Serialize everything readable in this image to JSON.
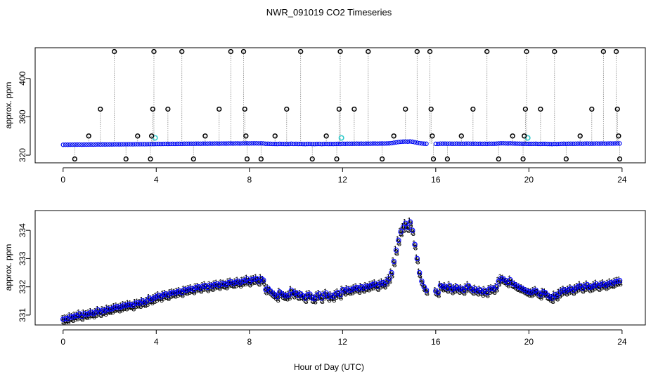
{
  "page_title": "NWR_091019  CO2 Timeseries",
  "xlabel": "Hour of Day (UTC)",
  "colors": {
    "level1": "#cc0000",
    "level2": "#00a000",
    "level3": "#0000ff",
    "outlier": "#000000",
    "flag": "#33cccc",
    "guide": "#888888"
  },
  "chart_data": [
    {
      "type": "scatter",
      "title": "NWR_091019  CO2 Timeseries",
      "xlabel": "",
      "ylabel": "approx. ppm",
      "xlim": [
        -1.2,
        25
      ],
      "ylim": [
        312,
        432
      ],
      "xticks": [
        0,
        4,
        8,
        12,
        16,
        20,
        24
      ],
      "xtick_labels": [
        "0",
        "4",
        "8",
        "12",
        "16",
        "20",
        "24"
      ],
      "yticks": [
        320,
        360,
        400
      ],
      "ytick_labels": [
        "320",
        "360",
        "400"
      ],
      "markers": "open circles, spikes joined to baseline by gray dotted lines",
      "outliers": [
        {
          "x": 0.5,
          "y": 316
        },
        {
          "x": 1.1,
          "y": 340
        },
        {
          "x": 1.6,
          "y": 368
        },
        {
          "x": 2.2,
          "y": 428
        },
        {
          "x": 2.7,
          "y": 316
        },
        {
          "x": 3.2,
          "y": 340
        },
        {
          "x": 3.75,
          "y": 316
        },
        {
          "x": 3.8,
          "y": 340
        },
        {
          "x": 3.85,
          "y": 368
        },
        {
          "x": 3.9,
          "y": 428
        },
        {
          "x": 4.5,
          "y": 368
        },
        {
          "x": 5.1,
          "y": 428
        },
        {
          "x": 5.6,
          "y": 316
        },
        {
          "x": 6.1,
          "y": 340
        },
        {
          "x": 6.7,
          "y": 368
        },
        {
          "x": 7.2,
          "y": 428
        },
        {
          "x": 7.75,
          "y": 428
        },
        {
          "x": 7.8,
          "y": 368
        },
        {
          "x": 7.85,
          "y": 340
        },
        {
          "x": 7.9,
          "y": 316
        },
        {
          "x": 8.5,
          "y": 316
        },
        {
          "x": 9.1,
          "y": 340
        },
        {
          "x": 9.6,
          "y": 368
        },
        {
          "x": 10.2,
          "y": 428
        },
        {
          "x": 10.7,
          "y": 316
        },
        {
          "x": 11.3,
          "y": 340
        },
        {
          "x": 11.75,
          "y": 316
        },
        {
          "x": 11.85,
          "y": 368
        },
        {
          "x": 11.9,
          "y": 428
        },
        {
          "x": 12.5,
          "y": 368
        },
        {
          "x": 13.1,
          "y": 428
        },
        {
          "x": 13.7,
          "y": 316
        },
        {
          "x": 14.2,
          "y": 340
        },
        {
          "x": 14.7,
          "y": 368
        },
        {
          "x": 15.2,
          "y": 428
        },
        {
          "x": 15.75,
          "y": 428
        },
        {
          "x": 15.8,
          "y": 368
        },
        {
          "x": 15.85,
          "y": 340
        },
        {
          "x": 15.9,
          "y": 316
        },
        {
          "x": 16.5,
          "y": 316
        },
        {
          "x": 17.1,
          "y": 340
        },
        {
          "x": 17.6,
          "y": 368
        },
        {
          "x": 18.2,
          "y": 428
        },
        {
          "x": 18.7,
          "y": 316
        },
        {
          "x": 19.3,
          "y": 340
        },
        {
          "x": 19.75,
          "y": 316
        },
        {
          "x": 19.8,
          "y": 340
        },
        {
          "x": 19.85,
          "y": 368
        },
        {
          "x": 19.9,
          "y": 428
        },
        {
          "x": 20.5,
          "y": 368
        },
        {
          "x": 21.1,
          "y": 428
        },
        {
          "x": 21.6,
          "y": 316
        },
        {
          "x": 22.2,
          "y": 340
        },
        {
          "x": 22.7,
          "y": 368
        },
        {
          "x": 23.2,
          "y": 428
        },
        {
          "x": 23.75,
          "y": 428
        },
        {
          "x": 23.8,
          "y": 368
        },
        {
          "x": 23.85,
          "y": 340
        },
        {
          "x": 23.9,
          "y": 316
        }
      ],
      "flagged": [
        {
          "x": 3.95,
          "y": 338
        },
        {
          "x": 11.95,
          "y": 338
        },
        {
          "x": 19.95,
          "y": 338
        }
      ]
    },
    {
      "type": "scatter",
      "title": "",
      "xlabel": "Hour of Day (UTC)",
      "ylabel": "approx. ppm",
      "xlim": [
        -1.2,
        25
      ],
      "ylim": [
        330.65,
        334.7
      ],
      "xticks": [
        0,
        4,
        8,
        12,
        16,
        20,
        24
      ],
      "xtick_labels": [
        "0",
        "4",
        "8",
        "12",
        "16",
        "20",
        "24"
      ],
      "yticks": [
        331,
        332,
        333,
        334
      ],
      "ytick_labels": [
        "331",
        "332",
        "333",
        "334"
      ],
      "markers": "level 1 = red '1', level 2 = green '2', level 3 = blue '3', mean = blue circle",
      "x_start": 0,
      "x_step": 0.1,
      "gap_after_index": 156,
      "gap_resume_x": 16,
      "values": [
        330.85,
        330.88,
        330.87,
        330.95,
        330.92,
        330.97,
        330.98,
        331.05,
        330.96,
        331.05,
        331.02,
        331.05,
        331.1,
        331.05,
        331.1,
        331.18,
        331.1,
        331.17,
        331.15,
        331.22,
        331.2,
        331.22,
        331.27,
        331.3,
        331.26,
        331.3,
        331.35,
        331.33,
        331.38,
        331.37,
        331.34,
        331.42,
        331.43,
        331.42,
        331.5,
        331.45,
        331.5,
        331.6,
        331.55,
        331.6,
        331.65,
        331.7,
        331.65,
        331.72,
        331.75,
        331.7,
        331.77,
        331.8,
        331.78,
        331.82,
        331.85,
        331.8,
        331.9,
        331.88,
        331.92,
        331.94,
        331.9,
        331.98,
        332.0,
        331.95,
        332.02,
        332.05,
        331.98,
        332.06,
        332.02,
        332.08,
        332.1,
        332.05,
        332.12,
        332.1,
        332.08,
        332.15,
        332.18,
        332.12,
        332.16,
        332.2,
        332.14,
        332.2,
        332.22,
        332.28,
        332.18,
        332.25,
        332.27,
        332.3,
        332.2,
        332.3,
        332.24,
        331.9,
        331.95,
        331.85,
        331.78,
        331.72,
        331.65,
        331.82,
        331.75,
        331.7,
        331.68,
        331.72,
        331.88,
        331.76,
        331.8,
        331.7,
        331.75,
        331.68,
        331.6,
        331.72,
        331.74,
        331.6,
        331.58,
        331.7,
        331.75,
        331.6,
        331.72,
        331.78,
        331.65,
        331.7,
        331.65,
        331.75,
        331.8,
        331.72,
        331.9,
        331.85,
        331.92,
        331.88,
        331.9,
        331.95,
        331.98,
        331.92,
        332.0,
        331.95,
        332.02,
        332.0,
        332.05,
        332.08,
        332.12,
        332.02,
        332.1,
        332.15,
        332.1,
        332.2,
        332.3,
        332.5,
        332.9,
        333.3,
        333.65,
        333.95,
        334.1,
        334.25,
        334.1,
        334.3,
        334.0,
        333.5,
        333.0,
        332.5,
        332.2,
        332.0,
        331.88,
        331.85,
        331.8,
        332.05,
        332.0,
        332.02,
        331.95,
        332.05,
        331.9,
        331.95,
        332.0,
        331.92,
        331.95,
        331.88,
        331.98,
        332.05,
        331.95,
        331.88,
        331.93,
        331.85,
        331.9,
        331.82,
        331.88,
        331.8,
        331.92,
        331.95,
        331.92,
        332.0,
        332.2,
        332.3,
        332.28,
        332.22,
        332.15,
        332.25,
        332.12,
        332.08,
        332.02,
        331.98,
        331.95,
        331.9,
        331.85,
        331.82,
        331.8,
        331.85,
        331.88,
        331.78,
        331.72,
        331.82,
        331.8,
        331.7,
        331.65,
        331.6,
        331.72,
        331.68,
        331.78,
        331.85,
        331.9,
        331.85,
        331.9,
        331.95,
        331.88,
        331.95,
        332.0,
        332.05,
        331.95,
        332.02,
        332.08,
        331.98,
        332.0,
        332.05,
        332.1,
        332.02,
        332.08,
        332.12,
        332.05,
        332.1,
        332.15,
        332.12,
        332.18,
        332.2,
        332.22
      ]
    }
  ]
}
